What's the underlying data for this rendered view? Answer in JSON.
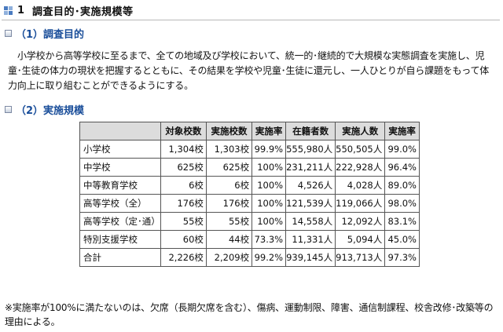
{
  "header": {
    "number": "1",
    "title": "調査目的･実施規模等"
  },
  "purpose": {
    "heading": "（1）調査目的",
    "text": "小学校から高等学校に至るまで、全ての地域及び学校において、統一的･継続的で大規模な実態調査を実施し、児童･生徒の体力の現状を把握するとともに、その結果を学校や児童･生徒に還元し、一人ひとりが自ら課題をもって体力向上に取り組むことができるようにする。"
  },
  "scale": {
    "heading": "（2）実施規模",
    "columns": [
      "",
      "対象校数",
      "実施校数",
      "実施率",
      "在籍者数",
      "実施人数",
      "実施率"
    ],
    "rows": [
      {
        "name": "小学校",
        "target": "1,304校",
        "done": "1,303校",
        "rate": "99.9%",
        "enrolled": "555,980人",
        "tested": "550,505人",
        "rate2": "99.0%"
      },
      {
        "name": "中学校",
        "target": "625校",
        "done": "625校",
        "rate": "100%",
        "enrolled": "231,211人",
        "tested": "222,928人",
        "rate2": "96.4%"
      },
      {
        "name": "中等教育学校",
        "target": "6校",
        "done": "6校",
        "rate": "100%",
        "enrolled": "4,526人",
        "tested": "4,028人",
        "rate2": "89.0%"
      },
      {
        "name": "高等学校（全）",
        "target": "176校",
        "done": "176校",
        "rate": "100%",
        "enrolled": "121,539人",
        "tested": "119,066人",
        "rate2": "98.0%"
      },
      {
        "name": "高等学校（定･通）",
        "target": "55校",
        "done": "55校",
        "rate": "100%",
        "enrolled": "14,558人",
        "tested": "12,092人",
        "rate2": "83.1%"
      },
      {
        "name": "特別支援学校",
        "target": "60校",
        "done": "44校",
        "rate": "73.3%",
        "enrolled": "11,331人",
        "tested": "5,094人",
        "rate2": "45.0%"
      },
      {
        "name": "合計",
        "target": "2,226校",
        "done": "2,209校",
        "rate": "99.2%",
        "enrolled": "939,145人",
        "tested": "913,713人",
        "rate2": "97.3%"
      }
    ]
  },
  "note": "※実施率が100%に満たないのは、欠席（長期欠席を含む）、傷病、運動制限、障害、通信制課程、校舎改修･改築等の理由による。"
}
